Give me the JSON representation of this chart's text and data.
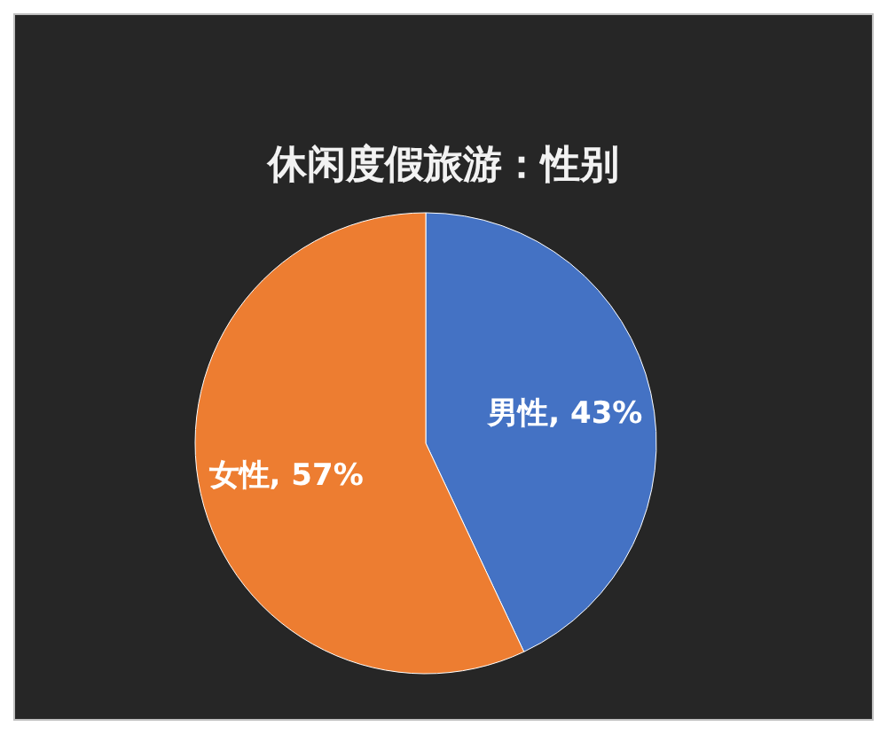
{
  "chart_data": {
    "type": "pie",
    "title": "休闲度假旅游：性别",
    "categories": [
      "男性, 43%",
      "女性, 57%"
    ],
    "values": [
      43,
      57
    ],
    "colors": [
      "#4472c4",
      "#ed7d31"
    ]
  }
}
